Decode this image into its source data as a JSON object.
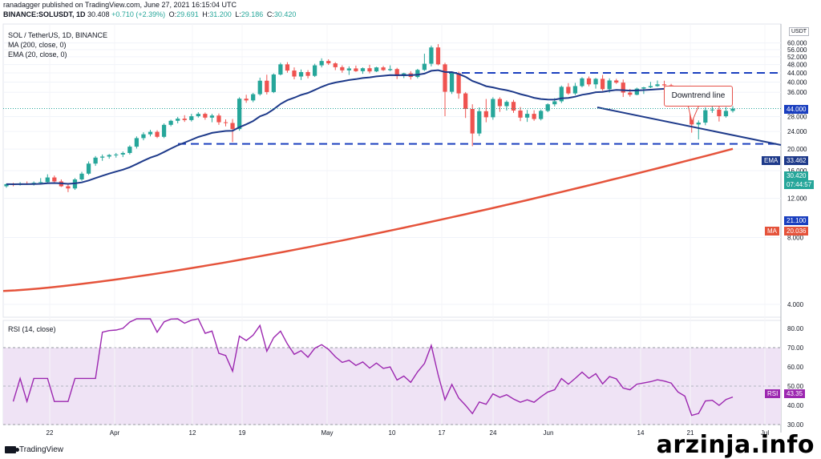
{
  "header": {
    "publisher_line": "ranadagger published on TradingView.com, June 27, 2021 16:15:04 UTC",
    "symbol": "BINANCE:SOLUSDT, 1D",
    "last": "30.408",
    "change": "+0.710 (+2.39%)",
    "o_label": "O:",
    "o_value": "29.691",
    "h_label": "H:",
    "h_value": "31.200",
    "l_label": "L:",
    "l_value": "29.186",
    "c_label": "C:",
    "c_value": "30.420"
  },
  "legend": {
    "title": "SOL / TetherUS, 1D, BINANCE",
    "ma": "MA (200, close, 0)",
    "ema": "EMA (20, close, 0)"
  },
  "rsi_legend": "RSI (14, close)",
  "currency": "USDT",
  "callout_text": "Downtrend line",
  "price_tags": {
    "resistance": "44.000",
    "ema": "33.462",
    "ema_label": "EMA",
    "close": "30.420",
    "countdown": "07:44:57",
    "support": "21.100",
    "ma": "20.036",
    "ma_label": "MA",
    "rsi": "43.35",
    "rsi_label": "RSI"
  },
  "footer": {
    "logo_text": "TradingView"
  },
  "watermark": "arzinja.info",
  "colors": {
    "up": "#26a69a",
    "down": "#ef5350",
    "ema": "#1e3a8a",
    "ma": "#e5533b",
    "level_line": "#1a3fbf",
    "trendline": "#1e3a8a",
    "rsi_line": "#9c27b0",
    "rsi_band": "#efe3f5"
  },
  "chart_data": {
    "type": "candlestick",
    "price_axis": {
      "ticks": [
        4,
        8,
        12,
        16,
        20,
        24,
        28,
        36,
        40,
        44,
        48,
        52,
        56,
        60
      ],
      "scale": "log"
    },
    "rsi_axis": {
      "ticks": [
        30,
        40,
        50,
        60,
        70,
        80
      ],
      "band": [
        30,
        70
      ]
    },
    "x_ticks": [
      "22",
      "Apr",
      "12",
      "19",
      "May",
      "10",
      "17",
      "24",
      "Jun",
      "14",
      "21",
      "Jul"
    ],
    "horizontal_levels": [
      44.0,
      21.1
    ],
    "candles": [
      [
        13.6,
        14.0,
        13.4,
        13.9
      ],
      [
        13.9,
        14.1,
        13.6,
        13.8
      ],
      [
        13.8,
        14.2,
        13.7,
        14.0
      ],
      [
        14.0,
        14.3,
        13.8,
        13.9
      ],
      [
        13.9,
        14.3,
        13.7,
        14.1
      ],
      [
        14.1,
        14.8,
        13.9,
        14.2
      ],
      [
        14.2,
        15.4,
        14.0,
        14.9
      ],
      [
        14.9,
        15.2,
        14.1,
        14.3
      ],
      [
        14.3,
        14.6,
        13.5,
        13.6
      ],
      [
        13.6,
        14.0,
        12.8,
        13.3
      ],
      [
        13.3,
        14.8,
        13.1,
        14.6
      ],
      [
        14.6,
        15.8,
        14.4,
        15.5
      ],
      [
        15.5,
        17.6,
        15.3,
        17.2
      ],
      [
        17.2,
        18.6,
        16.8,
        18.3
      ],
      [
        18.3,
        18.9,
        17.7,
        18.5
      ],
      [
        18.5,
        19.0,
        18.1,
        18.8
      ],
      [
        18.8,
        19.2,
        18.3,
        18.9
      ],
      [
        18.9,
        19.5,
        18.4,
        19.2
      ],
      [
        19.2,
        20.8,
        18.9,
        20.5
      ],
      [
        20.5,
        22.8,
        20.1,
        22.4
      ],
      [
        22.4,
        23.8,
        21.9,
        23.3
      ],
      [
        23.3,
        24.4,
        22.8,
        23.9
      ],
      [
        23.9,
        24.3,
        22.4,
        22.7
      ],
      [
        22.7,
        26.1,
        22.4,
        25.7
      ],
      [
        25.7,
        27.1,
        25.3,
        26.8
      ],
      [
        26.8,
        27.9,
        26.1,
        27.4
      ],
      [
        27.4,
        28.4,
        26.5,
        27.0
      ],
      [
        27.0,
        28.8,
        26.6,
        28.1
      ],
      [
        28.1,
        29.3,
        27.7,
        28.8
      ],
      [
        28.8,
        29.2,
        27.1,
        27.7
      ],
      [
        27.7,
        28.8,
        26.4,
        28.3
      ],
      [
        28.3,
        28.9,
        25.7,
        26.4
      ],
      [
        26.4,
        27.2,
        25.3,
        26.2
      ],
      [
        26.2,
        27.3,
        21.5,
        24.6
      ],
      [
        24.6,
        34.2,
        24.2,
        33.7
      ],
      [
        33.7,
        35.1,
        32.3,
        33.1
      ],
      [
        33.1,
        35.8,
        32.5,
        35.3
      ],
      [
        35.3,
        41.9,
        34.8,
        40.6
      ],
      [
        40.6,
        43.2,
        35.2,
        36.1
      ],
      [
        36.1,
        43.8,
        35.7,
        43.3
      ],
      [
        43.3,
        48.9,
        42.9,
        48.1
      ],
      [
        48.1,
        49.2,
        44.1,
        45.1
      ],
      [
        45.1,
        46.6,
        41.2,
        42.4
      ],
      [
        42.4,
        45.6,
        40.9,
        44.4
      ],
      [
        44.4,
        45.3,
        41.6,
        42.7
      ],
      [
        42.7,
        48.4,
        42.2,
        47.6
      ],
      [
        47.6,
        51.2,
        46.6,
        49.8
      ],
      [
        49.8,
        50.7,
        47.8,
        48.6
      ],
      [
        48.6,
        49.2,
        45.3,
        46.7
      ],
      [
        46.7,
        47.6,
        44.1,
        45.2
      ],
      [
        45.2,
        47.1,
        43.1,
        46.1
      ],
      [
        46.1,
        47.5,
        44.5,
        44.8
      ],
      [
        44.8,
        46.6,
        43.6,
        46.2
      ],
      [
        46.2,
        47.9,
        43.8,
        44.7
      ],
      [
        44.7,
        46.9,
        44.4,
        46.6
      ],
      [
        46.6,
        47.3,
        44.9,
        45.3
      ],
      [
        45.3,
        47.6,
        44.8,
        45.8
      ],
      [
        45.8,
        46.4,
        41.3,
        42.6
      ],
      [
        42.6,
        44.1,
        41.7,
        43.8
      ],
      [
        43.8,
        44.8,
        41.1,
        42.2
      ],
      [
        42.2,
        45.9,
        41.6,
        45.4
      ],
      [
        45.4,
        53.7,
        44.9,
        48.4
      ],
      [
        48.4,
        58.4,
        47.1,
        57.3
      ],
      [
        57.3,
        59.3,
        47.6,
        48.1
      ],
      [
        48.1,
        48.9,
        28.1,
        36.2
      ],
      [
        36.2,
        44.3,
        35.4,
        43.9
      ],
      [
        43.9,
        44.6,
        33.7,
        35.6
      ],
      [
        35.6,
        36.1,
        27.6,
        30.3
      ],
      [
        30.3,
        31.8,
        20.6,
        23.5
      ],
      [
        23.5,
        30.8,
        22.9,
        29.6
      ],
      [
        29.6,
        33.6,
        26.4,
        27.8
      ],
      [
        27.8,
        34.2,
        27.1,
        33.6
      ],
      [
        33.6,
        34.2,
        29.4,
        31.2
      ],
      [
        31.2,
        33.1,
        29.8,
        32.6
      ],
      [
        32.6,
        33.3,
        29.1,
        29.8
      ],
      [
        29.8,
        30.9,
        26.7,
        27.7
      ],
      [
        27.7,
        30.0,
        26.5,
        28.8
      ],
      [
        28.8,
        29.9,
        26.8,
        27.3
      ],
      [
        27.3,
        30.1,
        26.9,
        29.7
      ],
      [
        29.7,
        32.1,
        29.3,
        31.8
      ],
      [
        31.8,
        33.9,
        31.1,
        32.8
      ],
      [
        32.8,
        38.6,
        32.2,
        38.1
      ],
      [
        38.1,
        39.6,
        35.1,
        35.6
      ],
      [
        35.6,
        39.7,
        35.0,
        38.4
      ],
      [
        38.4,
        42.1,
        37.9,
        41.6
      ],
      [
        41.6,
        42.4,
        38.3,
        39.1
      ],
      [
        39.1,
        41.8,
        37.4,
        41.4
      ],
      [
        41.4,
        43.1,
        36.6,
        37.2
      ],
      [
        37.2,
        41.6,
        35.9,
        40.7
      ],
      [
        40.7,
        41.4,
        39.3,
        39.8
      ],
      [
        39.8,
        41.1,
        34.3,
        35.9
      ],
      [
        35.9,
        37.3,
        34.4,
        35.1
      ],
      [
        35.1,
        37.8,
        34.9,
        37.4
      ],
      [
        37.4,
        38.1,
        35.4,
        37.9
      ],
      [
        37.9,
        40.1,
        37.6,
        38.4
      ],
      [
        38.4,
        40.7,
        38.1,
        39.1
      ],
      [
        39.1,
        40.6,
        38.1,
        38.7
      ],
      [
        38.7,
        39.3,
        37.6,
        38.1
      ],
      [
        38.1,
        38.5,
        34.9,
        35.3
      ],
      [
        35.3,
        36.2,
        33.1,
        33.9
      ],
      [
        33.9,
        34.4,
        23.7,
        25.8
      ],
      [
        25.8,
        26.9,
        22.1,
        26.3
      ],
      [
        26.3,
        30.8,
        25.6,
        29.9
      ],
      [
        29.9,
        31.6,
        29.1,
        30.1
      ],
      [
        30.1,
        31.2,
        26.6,
        28.1
      ],
      [
        28.1,
        30.9,
        27.7,
        29.7
      ],
      [
        29.7,
        31.2,
        29.2,
        30.4
      ]
    ],
    "ema20_endpoint": 33.462,
    "ma200_endpoint": 20.036,
    "rsi_last": 43.35,
    "annotation": "Downtrend line"
  }
}
